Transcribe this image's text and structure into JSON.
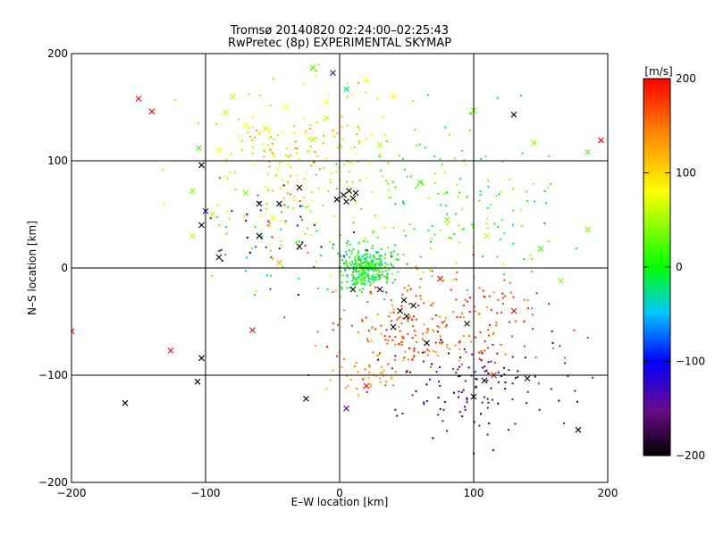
{
  "chart_data": {
    "type": "scatter",
    "title": "Tromsø 20140820 02:24:00–02:25:43",
    "subtitle": "RwPretec (8p) EXPERIMENTAL SKYMAP",
    "xlabel": "E–W location [km]",
    "ylabel": "N–S location [km]",
    "xlim": [
      -200,
      200
    ],
    "ylim": [
      -200,
      200
    ],
    "xticks": [
      "−200",
      "−100",
      "0",
      "100",
      "200"
    ],
    "yticks": [
      "−200",
      "−100",
      "0",
      "100",
      "200"
    ],
    "grid": true,
    "colorbar": {
      "label": "[m/s]",
      "range": [
        -200,
        200
      ],
      "ticks": [
        "200",
        "100",
        "0",
        "−100",
        "−200"
      ],
      "colors": [
        "#000000",
        "#6a0a8a",
        "#0000ff",
        "#00c8ff",
        "#00ff00",
        "#ffff00",
        "#ff8c00",
        "#ff0000"
      ]
    },
    "series": [
      {
        "marker": "point",
        "note_clusters": [
          {
            "cx": 20,
            "cy": 0,
            "sx": 10,
            "sy": 10,
            "n": 320,
            "vmin": -40,
            "vmax": 40
          },
          {
            "cx": -30,
            "cy": 110,
            "sx": 35,
            "sy": 30,
            "n": 180,
            "vmin": 40,
            "vmax": 140
          },
          {
            "cx": 55,
            "cy": -55,
            "sx": 30,
            "sy": 25,
            "n": 200,
            "vmin": 120,
            "vmax": 200
          },
          {
            "cx": 100,
            "cy": -110,
            "sx": 35,
            "sy": 25,
            "n": 120,
            "vmin": -200,
            "vmax": -120
          },
          {
            "cx": 90,
            "cy": 60,
            "sx": 40,
            "sy": 40,
            "n": 150,
            "vmin": -30,
            "vmax": 60
          },
          {
            "cx": 20,
            "cy": -100,
            "sx": 15,
            "sy": 8,
            "n": 40,
            "vmin": 110,
            "vmax": 150
          },
          {
            "cx": -40,
            "cy": 30,
            "sx": 35,
            "sy": 30,
            "n": 110,
            "vmin": -200,
            "vmax": 200
          },
          {
            "cx": 120,
            "cy": -40,
            "sx": 30,
            "sy": 25,
            "n": 60,
            "vmin": 140,
            "vmax": 200
          }
        ]
      },
      {
        "marker": "cross",
        "points": [
          [
            -150,
            158,
            200
          ],
          [
            -140,
            146,
            200
          ],
          [
            -103,
            96,
            -200
          ],
          [
            -100,
            53,
            -120
          ],
          [
            -103,
            40,
            -200
          ],
          [
            -85,
            145,
            60
          ],
          [
            -80,
            160,
            60
          ],
          [
            -70,
            133,
            80
          ],
          [
            -40,
            150,
            80
          ],
          [
            -10,
            140,
            60
          ],
          [
            5,
            167,
            -20
          ],
          [
            20,
            175,
            80
          ],
          [
            40,
            160,
            80
          ],
          [
            -70,
            70,
            40
          ],
          [
            -60,
            60,
            -200
          ],
          [
            -60,
            30,
            -200
          ],
          [
            -30,
            75,
            -200
          ],
          [
            -45,
            60,
            -200
          ],
          [
            -20,
            120,
            60
          ],
          [
            -110,
            72,
            40
          ],
          [
            -110,
            30,
            60
          ],
          [
            -90,
            110,
            80
          ],
          [
            -65,
            -58,
            200
          ],
          [
            -126,
            -77,
            200
          ],
          [
            -103,
            -84,
            -200
          ],
          [
            -106,
            -106,
            -200
          ],
          [
            -160,
            -126,
            -200
          ],
          [
            -200,
            -59,
            200
          ],
          [
            -25,
            -122,
            -200
          ],
          [
            5,
            -131,
            -160
          ],
          [
            20,
            -110,
            200
          ],
          [
            3,
            68,
            -200
          ],
          [
            5,
            62,
            -200
          ],
          [
            7,
            72,
            -200
          ],
          [
            10,
            65,
            -200
          ],
          [
            12,
            70,
            -200
          ],
          [
            -2,
            64,
            -200
          ],
          [
            45,
            -40,
            -200
          ],
          [
            50,
            -45,
            -200
          ],
          [
            55,
            -35,
            -200
          ],
          [
            48,
            -30,
            -200
          ],
          [
            30,
            -20,
            -200
          ],
          [
            10,
            -20,
            -200
          ],
          [
            95,
            -52,
            -200
          ],
          [
            115,
            -100,
            200
          ],
          [
            108,
            -105,
            -200
          ],
          [
            100,
            -120,
            -200
          ],
          [
            140,
            -103,
            -200
          ],
          [
            130,
            143,
            -200
          ],
          [
            178,
            -151,
            -200
          ],
          [
            195,
            119,
            200
          ],
          [
            185,
            108,
            20
          ],
          [
            185,
            36,
            40
          ],
          [
            150,
            18,
            20
          ],
          [
            165,
            -12,
            40
          ],
          [
            -105,
            112,
            20
          ],
          [
            -95,
            50,
            60
          ],
          [
            -50,
            47,
            80
          ],
          [
            -30,
            20,
            -200
          ],
          [
            -45,
            5,
            120
          ],
          [
            -90,
            10,
            -200
          ],
          [
            100,
            147,
            40
          ],
          [
            145,
            117,
            40
          ],
          [
            -5,
            182,
            -120
          ],
          [
            -20,
            187,
            20
          ],
          [
            60,
            80,
            20
          ],
          [
            80,
            45,
            40
          ],
          [
            110,
            30,
            60
          ],
          [
            130,
            -40,
            200
          ],
          [
            75,
            -10,
            200
          ],
          [
            65,
            -70,
            -200
          ],
          [
            40,
            -55,
            -200
          ],
          [
            -10,
            155,
            80
          ],
          [
            30,
            115,
            60
          ],
          [
            -55,
            130,
            100
          ]
        ]
      }
    ]
  }
}
